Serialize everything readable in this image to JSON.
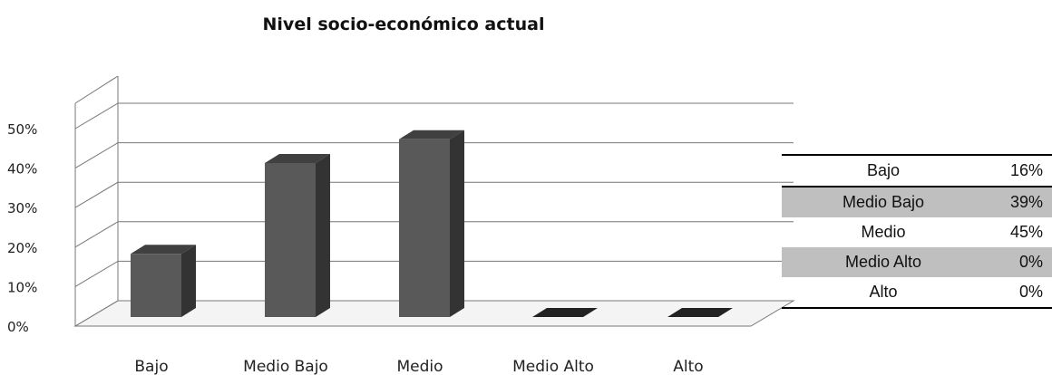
{
  "chart_data": {
    "type": "bar",
    "title": "Nivel socio-económico actual",
    "categories": [
      "Bajo",
      "Medio Bajo",
      "Medio",
      "Medio Alto",
      "Alto"
    ],
    "values": [
      16,
      39,
      45,
      0,
      0
    ],
    "value_labels": [
      "16%",
      "39%",
      "45%",
      "0%",
      "0%"
    ],
    "yticks": [
      "0%",
      "10%",
      "20%",
      "30%",
      "40%",
      "50%"
    ],
    "ylim": [
      0,
      50
    ],
    "grid": true,
    "bar_color": "#595959",
    "style": "3d",
    "legend": "none"
  }
}
